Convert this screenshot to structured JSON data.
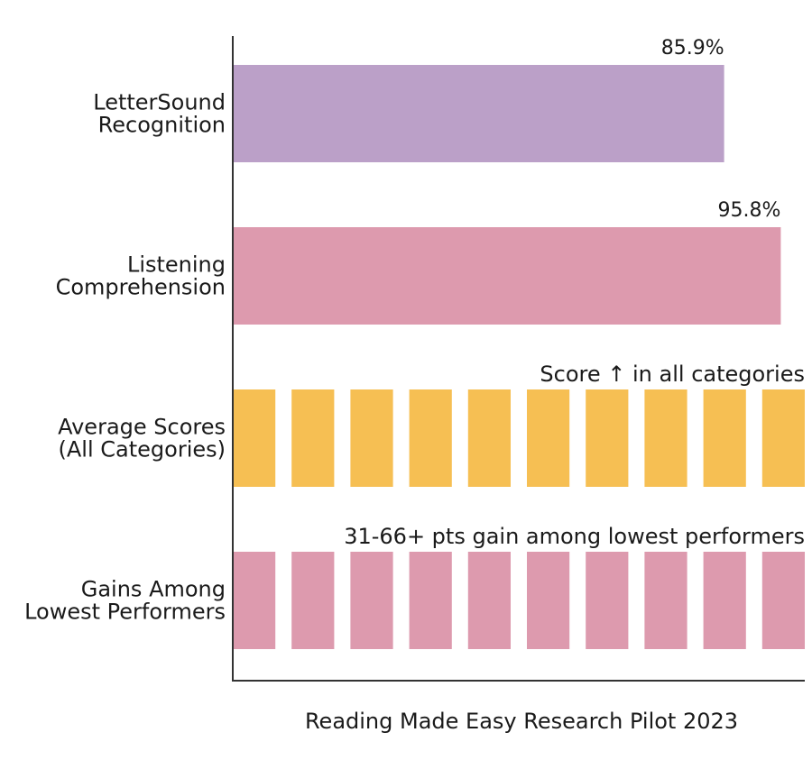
{
  "chart_data": {
    "type": "bar",
    "orientation": "horizontal",
    "xlabel": "Reading Made Easy Research Pilot 2023",
    "xlim": [
      0,
      100
    ],
    "grid": false,
    "legend": "none",
    "categories": [
      {
        "lines": [
          "LetterSound",
          "Recognition"
        ]
      },
      {
        "lines": [
          "Listening",
          "Comprehension"
        ]
      },
      {
        "lines": [
          "Average Scores",
          "(All Categories)"
        ]
      },
      {
        "lines": [
          "Gains Among",
          "Lowest Performers"
        ]
      }
    ],
    "bars": [
      {
        "kind": "value",
        "value": 85.9,
        "label": "85.9%",
        "color": "#bba0c8"
      },
      {
        "kind": "value",
        "value": 95.8,
        "label": "95.8%",
        "color": "#dd9aae"
      },
      {
        "kind": "segmented",
        "value": 100,
        "segments": 10,
        "label": "Score ↑ in all categories",
        "color": "#f6bf53"
      },
      {
        "kind": "segmented",
        "value": 100,
        "segments": 10,
        "label": "31-66+ pts gain among lowest performers",
        "color": "#dd9aae"
      }
    ]
  }
}
